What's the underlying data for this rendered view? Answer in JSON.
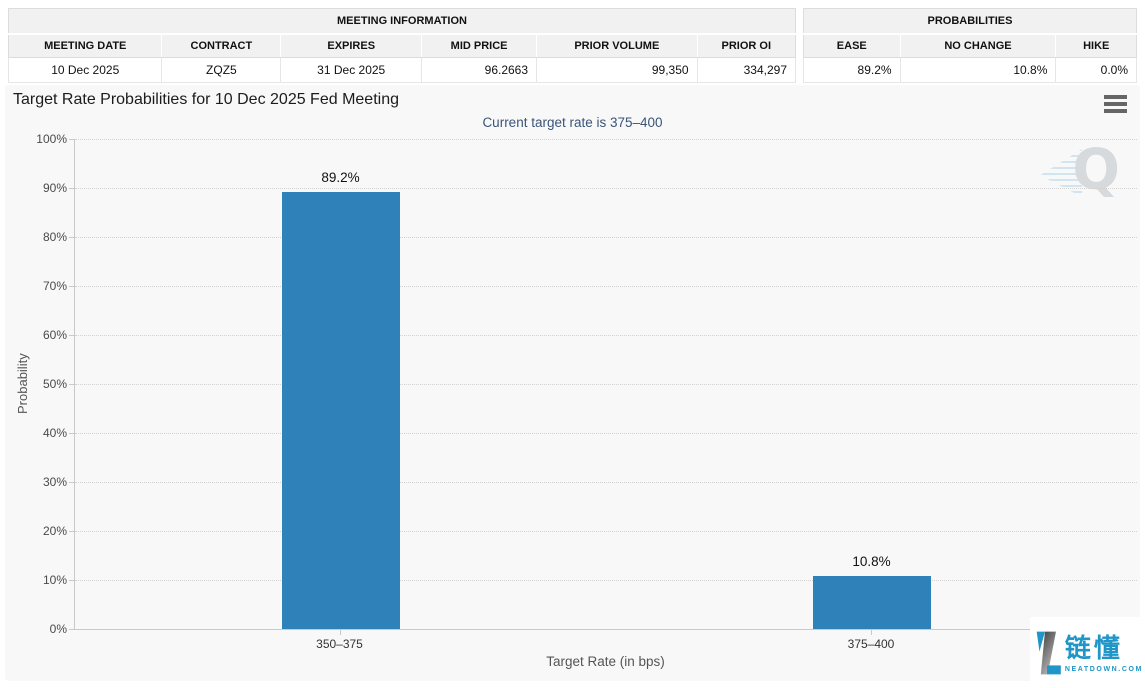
{
  "meeting_info": {
    "title": "MEETING INFORMATION",
    "columns": [
      "MEETING DATE",
      "CONTRACT",
      "EXPIRES",
      "MID PRICE",
      "PRIOR VOLUME",
      "PRIOR OI"
    ],
    "row": [
      "10 Dec 2025",
      "ZQZ5",
      "31 Dec 2025",
      "96.2663",
      "99,350",
      "334,297"
    ]
  },
  "probabilities": {
    "title": "PROBABILITIES",
    "columns": [
      "EASE",
      "NO CHANGE",
      "HIKE"
    ],
    "row": [
      "89.2%",
      "10.8%",
      "0.0%"
    ]
  },
  "chart": {
    "title": "Target Rate Probabilities for 10 Dec 2025 Fed Meeting",
    "subtitle": "Current target rate is 375–400",
    "menu_icon": "hamburger-icon",
    "watermark_letter": "Q"
  },
  "chart_data": {
    "type": "bar",
    "title": "Target Rate Probabilities for 10 Dec 2025 Fed Meeting",
    "subtitle": "Current target rate is 375–400",
    "categories": [
      "350–375",
      "375–400"
    ],
    "values": [
      89.2,
      10.8
    ],
    "value_labels": [
      "89.2%",
      "10.8%"
    ],
    "xlabel": "Target Rate (in bps)",
    "ylabel": "Probability",
    "ylim": [
      0,
      100
    ],
    "ytick_labels_top_to_bottom": [
      "100%",
      "90%",
      "80%",
      "70%",
      "60%",
      "50%",
      "40%",
      "30%",
      "20%",
      "10%",
      "0%"
    ],
    "grid": "dotted horizontal",
    "legend": "none",
    "bar_color": "#2f81ba"
  },
  "footer_logo": {
    "cn_text": "链懂",
    "domain": "NEATDOWN.COM",
    "color": "#2095c8"
  },
  "colors": {
    "bar": "#2f81ba",
    "chart_background": "#f8f8f8",
    "subtitle_text": "#3a5578",
    "table_header_background": "#f1f1f1"
  }
}
